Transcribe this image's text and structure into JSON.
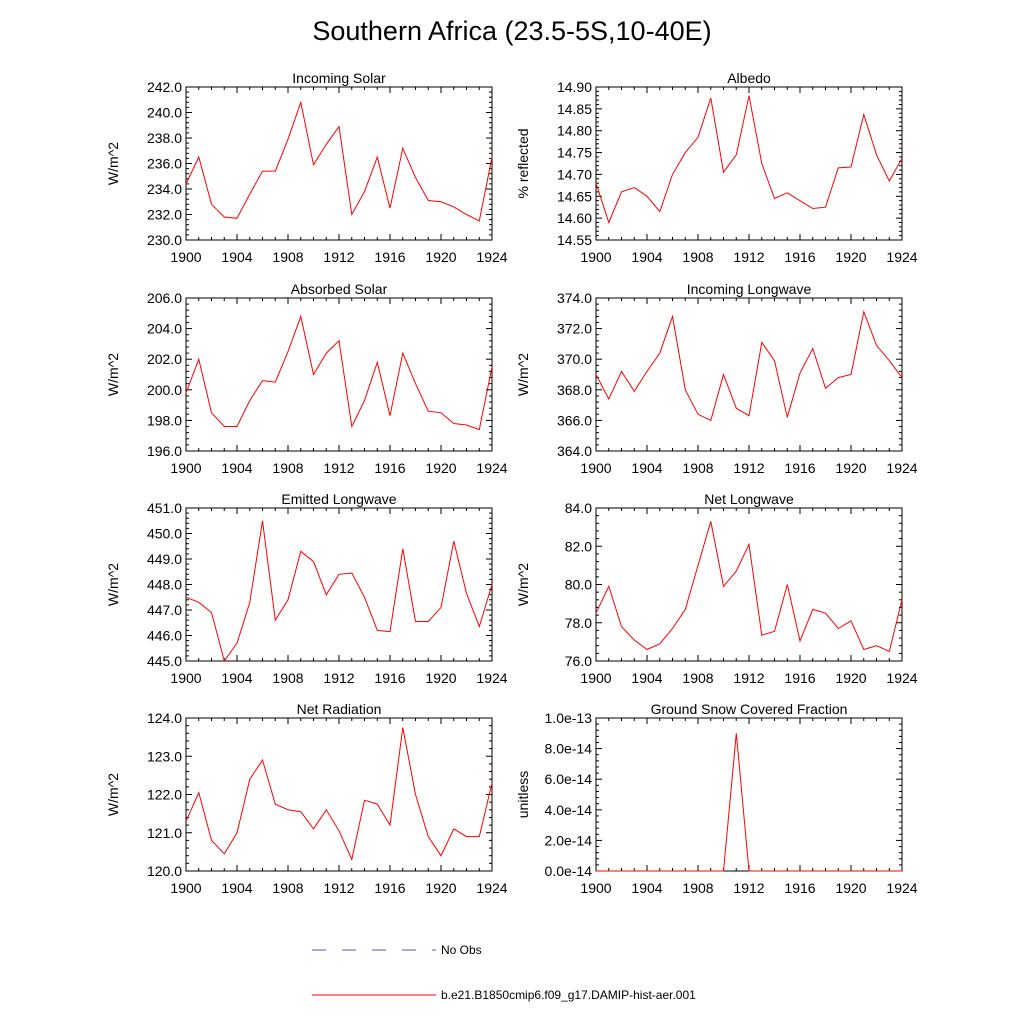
{
  "page_title": "Southern Africa (23.5-5S,10-40E)",
  "colors": {
    "model_line": "#ff0000",
    "obs_line": "#5555bb",
    "axis": "#000000"
  },
  "legend": {
    "obs_label": "No Obs",
    "model_label": "b.e21.B1850cmip6.f09_g17.DAMIP-hist-aer.001"
  },
  "chart_data": [
    {
      "type": "line",
      "title": "Incoming Solar",
      "ylabel": "W/m^2",
      "ylim": [
        230,
        242
      ],
      "yticks": [
        "230.0",
        "232.0",
        "234.0",
        "236.0",
        "238.0",
        "240.0",
        "242.0"
      ],
      "ytick_values": [
        230,
        232,
        234,
        236,
        238,
        240,
        242
      ],
      "xlim": [
        1900,
        1924
      ],
      "xticks": [
        "1900",
        "1904",
        "1908",
        "1912",
        "1916",
        "1920",
        "1924"
      ],
      "x": [
        1900,
        1901,
        1902,
        1903,
        1904,
        1905,
        1906,
        1907,
        1908,
        1909,
        1910,
        1911,
        1912,
        1913,
        1914,
        1915,
        1916,
        1917,
        1918,
        1919,
        1920,
        1921,
        1922,
        1923,
        1924
      ],
      "values": [
        234.4,
        236.5,
        232.8,
        231.8,
        231.7,
        233.6,
        235.4,
        235.4,
        237.9,
        240.8,
        235.9,
        237.5,
        238.9,
        232.0,
        233.8,
        236.5,
        232.5,
        237.2,
        234.9,
        233.1,
        233.0,
        232.6,
        232.0,
        231.5,
        236.5
      ]
    },
    {
      "type": "line",
      "title": "Albedo",
      "ylabel": "% reflected",
      "ylim": [
        14.55,
        14.9
      ],
      "yticks": [
        "14.55",
        "14.60",
        "14.65",
        "14.70",
        "14.75",
        "14.80",
        "14.85",
        "14.90"
      ],
      "ytick_values": [
        14.55,
        14.6,
        14.65,
        14.7,
        14.75,
        14.8,
        14.85,
        14.9
      ],
      "xlim": [
        1900,
        1924
      ],
      "xticks": [
        "1900",
        "1904",
        "1908",
        "1912",
        "1916",
        "1920",
        "1924"
      ],
      "x": [
        1900,
        1901,
        1902,
        1903,
        1904,
        1905,
        1906,
        1907,
        1908,
        1909,
        1910,
        1911,
        1912,
        1913,
        1914,
        1915,
        1916,
        1917,
        1918,
        1919,
        1920,
        1921,
        1922,
        1923,
        1924
      ],
      "values": [
        14.68,
        14.59,
        14.66,
        14.67,
        14.65,
        14.615,
        14.7,
        14.75,
        14.785,
        14.875,
        14.705,
        14.745,
        14.88,
        14.725,
        14.645,
        14.658,
        14.64,
        14.622,
        14.625,
        14.715,
        14.717,
        14.837,
        14.745,
        14.685,
        14.737
      ]
    },
    {
      "type": "line",
      "title": "Absorbed Solar",
      "ylabel": "W/m^2",
      "ylim": [
        196,
        206
      ],
      "yticks": [
        "196.0",
        "198.0",
        "200.0",
        "202.0",
        "204.0",
        "206.0"
      ],
      "ytick_values": [
        196,
        198,
        200,
        202,
        204,
        206
      ],
      "xlim": [
        1900,
        1924
      ],
      "xticks": [
        "1900",
        "1904",
        "1908",
        "1912",
        "1916",
        "1920",
        "1924"
      ],
      "x": [
        1900,
        1901,
        1902,
        1903,
        1904,
        1905,
        1906,
        1907,
        1908,
        1909,
        1910,
        1911,
        1912,
        1913,
        1914,
        1915,
        1916,
        1917,
        1918,
        1919,
        1920,
        1921,
        1922,
        1923,
        1924
      ],
      "values": [
        199.8,
        202.0,
        198.5,
        197.6,
        197.6,
        199.3,
        200.6,
        200.5,
        202.5,
        204.8,
        201.0,
        202.4,
        203.2,
        197.6,
        199.3,
        201.8,
        198.3,
        202.4,
        200.4,
        198.6,
        198.5,
        197.8,
        197.7,
        197.4,
        201.5
      ]
    },
    {
      "type": "line",
      "title": "Incoming Longwave",
      "ylabel": "W/m^2",
      "ylim": [
        364,
        374
      ],
      "yticks": [
        "364.0",
        "366.0",
        "368.0",
        "370.0",
        "372.0",
        "374.0"
      ],
      "ytick_values": [
        364,
        366,
        368,
        370,
        372,
        374
      ],
      "xlim": [
        1900,
        1924
      ],
      "xticks": [
        "1900",
        "1904",
        "1908",
        "1912",
        "1916",
        "1920",
        "1924"
      ],
      "x": [
        1900,
        1901,
        1902,
        1903,
        1904,
        1905,
        1906,
        1907,
        1908,
        1909,
        1910,
        1911,
        1912,
        1913,
        1914,
        1915,
        1916,
        1917,
        1918,
        1919,
        1920,
        1921,
        1922,
        1923,
        1924
      ],
      "values": [
        369.0,
        367.4,
        369.2,
        367.9,
        369.2,
        370.4,
        372.8,
        368.0,
        366.4,
        366.0,
        369.0,
        366.8,
        366.3,
        371.1,
        369.9,
        366.2,
        369.1,
        370.7,
        368.1,
        368.8,
        369.0,
        373.1,
        370.9,
        369.9,
        368.8
      ]
    },
    {
      "type": "line",
      "title": "Emitted Longwave",
      "ylabel": "W/m^2",
      "ylim": [
        445,
        451
      ],
      "yticks": [
        "445.0",
        "446.0",
        "447.0",
        "448.0",
        "449.0",
        "450.0",
        "451.0"
      ],
      "ytick_values": [
        445,
        446,
        447,
        448,
        449,
        450,
        451
      ],
      "xlim": [
        1900,
        1924
      ],
      "xticks": [
        "1900",
        "1904",
        "1908",
        "1912",
        "1916",
        "1920",
        "1924"
      ],
      "x": [
        1900,
        1901,
        1902,
        1903,
        1904,
        1905,
        1906,
        1907,
        1908,
        1909,
        1910,
        1911,
        1912,
        1913,
        1914,
        1915,
        1916,
        1917,
        1918,
        1919,
        1920,
        1921,
        1922,
        1923,
        1924
      ],
      "values": [
        447.5,
        447.3,
        446.9,
        445.0,
        445.7,
        447.3,
        450.5,
        446.6,
        447.4,
        449.3,
        448.9,
        447.6,
        448.4,
        448.45,
        447.5,
        446.2,
        446.15,
        449.4,
        446.55,
        446.55,
        447.1,
        449.7,
        447.65,
        446.35,
        448.0
      ]
    },
    {
      "type": "line",
      "title": "Net Longwave",
      "ylabel": "W/m^2",
      "ylim": [
        76,
        84
      ],
      "yticks": [
        "76.0",
        "78.0",
        "80.0",
        "82.0",
        "84.0"
      ],
      "ytick_values": [
        76,
        78,
        80,
        82,
        84
      ],
      "xlim": [
        1900,
        1924
      ],
      "xticks": [
        "1900",
        "1904",
        "1908",
        "1912",
        "1916",
        "1920",
        "1924"
      ],
      "x": [
        1900,
        1901,
        1902,
        1903,
        1904,
        1905,
        1906,
        1907,
        1908,
        1909,
        1910,
        1911,
        1912,
        1913,
        1914,
        1915,
        1916,
        1917,
        1918,
        1919,
        1920,
        1921,
        1922,
        1923,
        1924
      ],
      "values": [
        78.5,
        79.9,
        77.8,
        77.1,
        76.6,
        76.9,
        77.7,
        78.7,
        81.0,
        83.3,
        79.9,
        80.7,
        82.1,
        77.35,
        77.55,
        80.0,
        77.05,
        78.7,
        78.5,
        77.7,
        78.1,
        76.6,
        76.8,
        76.5,
        79.2
      ]
    },
    {
      "type": "line",
      "title": "Net Radiation",
      "ylabel": "W/m^2",
      "ylim": [
        120,
        124
      ],
      "yticks": [
        "120.0",
        "121.0",
        "122.0",
        "123.0",
        "124.0"
      ],
      "ytick_values": [
        120,
        121,
        122,
        123,
        124
      ],
      "xlim": [
        1900,
        1924
      ],
      "xticks": [
        "1900",
        "1904",
        "1908",
        "1912",
        "1916",
        "1920",
        "1924"
      ],
      "x": [
        1900,
        1901,
        1902,
        1903,
        1904,
        1905,
        1906,
        1907,
        1908,
        1909,
        1910,
        1911,
        1912,
        1913,
        1914,
        1915,
        1916,
        1917,
        1918,
        1919,
        1920,
        1921,
        1922,
        1923,
        1924
      ],
      "values": [
        121.3,
        122.05,
        120.8,
        120.45,
        121.0,
        122.4,
        122.9,
        121.75,
        121.6,
        121.55,
        121.1,
        121.6,
        121.05,
        120.3,
        121.85,
        121.75,
        121.2,
        123.75,
        122.0,
        120.9,
        120.4,
        121.1,
        120.9,
        120.9,
        122.3
      ]
    },
    {
      "type": "line",
      "title": "Ground Snow Covered Fraction",
      "ylabel": "unitless",
      "ylim": [
        0,
        1e-13
      ],
      "yticks": [
        "0.0e-14",
        "2.0e-14",
        "4.0e-14",
        "6.0e-14",
        "8.0e-14",
        "1.0e-13"
      ],
      "ytick_values": [
        0,
        2e-14,
        4e-14,
        6e-14,
        8e-14,
        1e-13
      ],
      "xlim": [
        1900,
        1924
      ],
      "xticks": [
        "1900",
        "1904",
        "1908",
        "1912",
        "1916",
        "1920",
        "1924"
      ],
      "x": [
        1900,
        1901,
        1902,
        1903,
        1904,
        1905,
        1906,
        1907,
        1908,
        1909,
        1910,
        1911,
        1912,
        1913,
        1914,
        1915,
        1916,
        1917,
        1918,
        1919,
        1920,
        1921,
        1922,
        1923,
        1924
      ],
      "values": [
        0,
        0,
        0,
        0,
        0,
        0,
        0,
        0,
        0,
        0,
        0,
        9e-14,
        0,
        0,
        0,
        0,
        0,
        0,
        0,
        0,
        0,
        0,
        0,
        0,
        0
      ]
    }
  ]
}
